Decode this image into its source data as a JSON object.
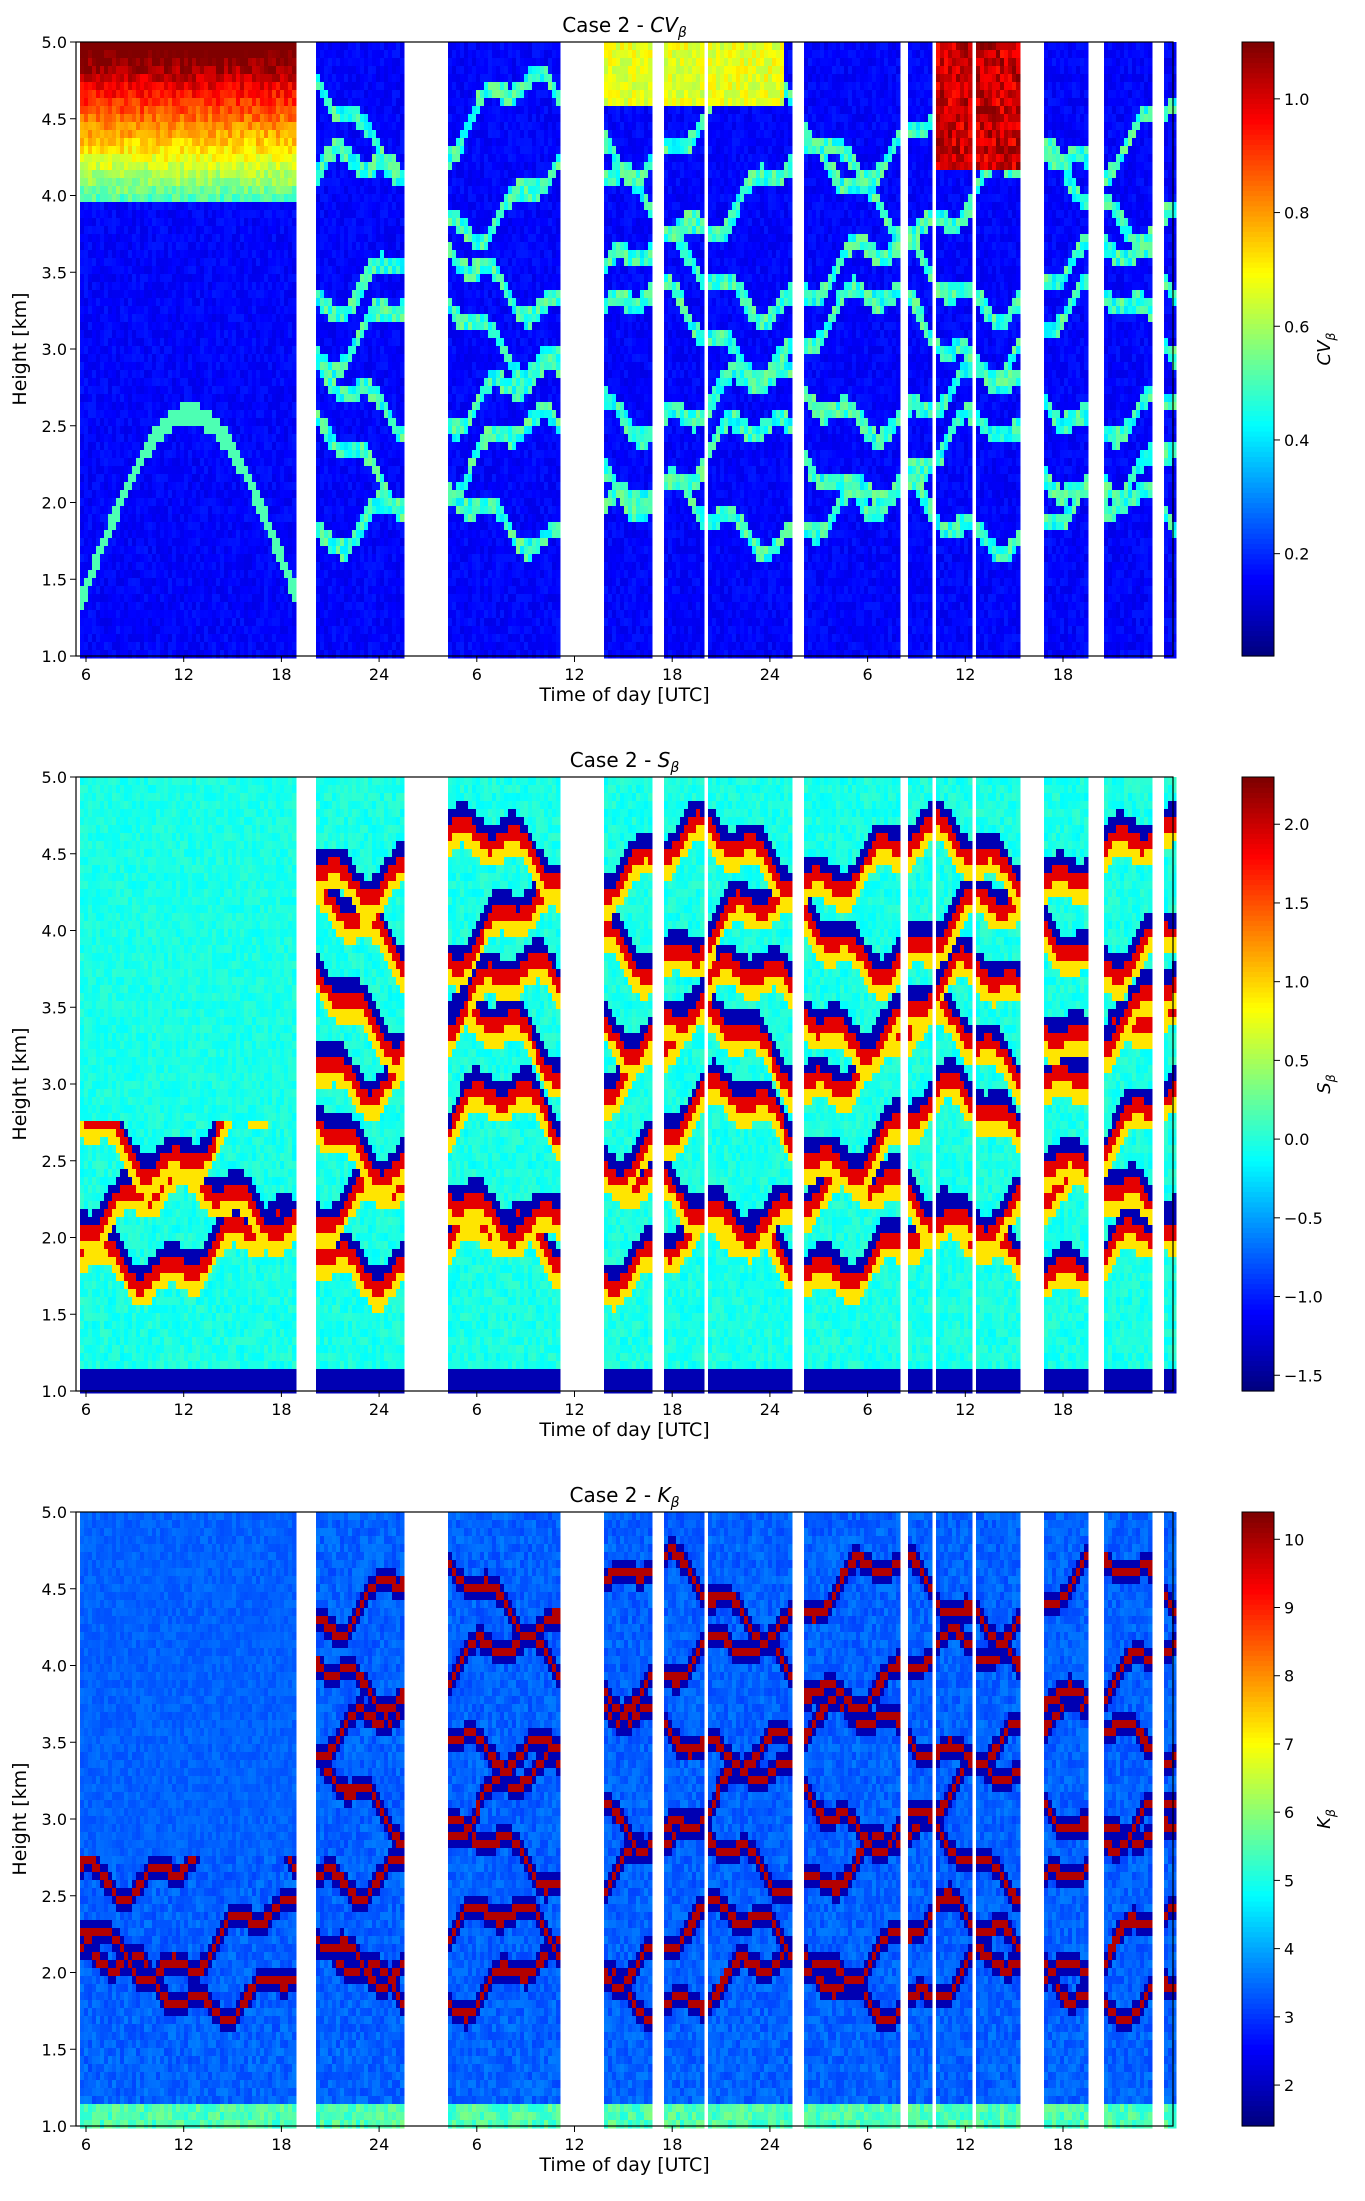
{
  "chart_data": [
    {
      "type": "heatmap",
      "title": "Case 2 - CVβ",
      "title_prefix": "Case 2 - ",
      "title_symbol": "CV",
      "title_sub": "β",
      "xlabel": "Time of day [UTC]",
      "ylabel": "Height [km]",
      "xticks": [
        "6",
        "12",
        "18",
        "24",
        "6",
        "12",
        "18",
        "24",
        "6",
        "12",
        "18"
      ],
      "yticks": [
        "1.0",
        "1.5",
        "2.0",
        "2.5",
        "3.0",
        "3.5",
        "4.0",
        "4.5",
        "5.0"
      ],
      "ylim": [
        1.0,
        5.0
      ],
      "colorbar": {
        "label": "CVβ",
        "label_symbol": "CV",
        "label_sub": "β",
        "ticks": [
          "0.2",
          "0.4",
          "0.6",
          "0.8",
          "1.0"
        ],
        "range": [
          0.02,
          1.1
        ],
        "colormap": "jet"
      },
      "data_gaps_hours_since_first_tick": [
        [
          -1.2,
          -0.6
        ],
        [
          12.8,
          14.0
        ],
        [
          19.5,
          22.2
        ],
        [
          29.2,
          32.0
        ],
        [
          34.8,
          35.6
        ],
        [
          38.2,
          38.4
        ],
        [
          43.6,
          44.4
        ],
        [
          50.2,
          50.7
        ],
        [
          52.3,
          52.6
        ],
        [
          54.7,
          55.0
        ],
        [
          57.6,
          59.2
        ],
        [
          62.0,
          62.8
        ],
        [
          66.0,
          66.6
        ]
      ]
    },
    {
      "type": "heatmap",
      "title": "Case 2 - Sβ",
      "title_prefix": "Case 2 - ",
      "title_symbol": "S",
      "title_sub": "β",
      "xlabel": "Time of day [UTC]",
      "ylabel": "Height [km]",
      "xticks": [
        "6",
        "12",
        "18",
        "24",
        "6",
        "12",
        "18",
        "24",
        "6",
        "12",
        "18"
      ],
      "yticks": [
        "1.0",
        "1.5",
        "2.0",
        "2.5",
        "3.0",
        "3.5",
        "4.0",
        "4.5",
        "5.0"
      ],
      "ylim": [
        1.0,
        5.0
      ],
      "colorbar": {
        "label": "Sβ",
        "label_symbol": "S",
        "label_sub": "β",
        "ticks": [
          "−1.5",
          "−1.0",
          "−0.5",
          "0.0",
          "0.5",
          "1.0",
          "1.5",
          "2.0"
        ],
        "range": [
          -1.6,
          2.3
        ],
        "colormap": "jet"
      }
    },
    {
      "type": "heatmap",
      "title": "Case 2 - Kβ",
      "title_prefix": "Case 2 - ",
      "title_symbol": "K",
      "title_sub": "β",
      "xlabel": "Time of day [UTC]",
      "ylabel": "Height [km]",
      "xticks": [
        "6",
        "12",
        "18",
        "24",
        "6",
        "12",
        "18",
        "24",
        "6",
        "12",
        "18"
      ],
      "yticks": [
        "1.0",
        "1.5",
        "2.0",
        "2.5",
        "3.0",
        "3.5",
        "4.0",
        "4.5",
        "5.0"
      ],
      "ylim": [
        1.0,
        5.0
      ],
      "colorbar": {
        "label": "Kβ",
        "label_symbol": "K",
        "label_sub": "β",
        "ticks": [
          "2",
          "3",
          "4",
          "5",
          "6",
          "7",
          "8",
          "9",
          "10"
        ],
        "range": [
          1.4,
          10.4
        ],
        "colormap": "jet"
      }
    }
  ]
}
